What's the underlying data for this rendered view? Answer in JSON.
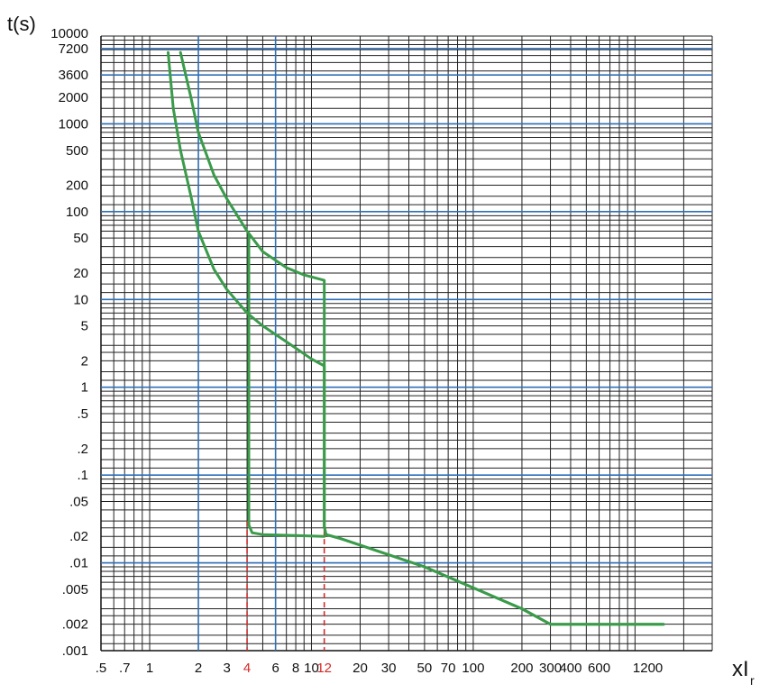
{
  "chart_data": {
    "type": "line",
    "title": "",
    "ylabel": "t(s)",
    "xlabel": "xI",
    "xlabel_sub": "r",
    "x_scale": "log",
    "y_scale": "log",
    "xlim": [
      0.5,
      3000
    ],
    "ylim": [
      0.001,
      10000
    ],
    "grid": true,
    "x_ticks": [
      {
        "value": 0.5,
        "label": ".5"
      },
      {
        "value": 0.7,
        "label": ".7"
      },
      {
        "value": 1,
        "label": "1"
      },
      {
        "value": 2,
        "label": "2"
      },
      {
        "value": 3,
        "label": "3"
      },
      {
        "value": 4,
        "label": "4",
        "highlight": true
      },
      {
        "value": 6,
        "label": "6"
      },
      {
        "value": 8,
        "label": "8"
      },
      {
        "value": 10,
        "label": "10"
      },
      {
        "value": 12,
        "label": "12",
        "highlight": true
      },
      {
        "value": 20,
        "label": "20"
      },
      {
        "value": 30,
        "label": "30"
      },
      {
        "value": 50,
        "label": "50"
      },
      {
        "value": 70,
        "label": "70"
      },
      {
        "value": 100,
        "label": "100"
      },
      {
        "value": 200,
        "label": "200"
      },
      {
        "value": 300,
        "label": "300"
      },
      {
        "value": 400,
        "label": "400"
      },
      {
        "value": 600,
        "label": "600"
      },
      {
        "value": 1200,
        "label": "1200"
      }
    ],
    "y_ticks": [
      {
        "value": 10000,
        "label": "10000"
      },
      {
        "value": 7200,
        "label": "7200"
      },
      {
        "value": 3600,
        "label": "3600"
      },
      {
        "value": 2000,
        "label": "2000"
      },
      {
        "value": 1000,
        "label": "1000"
      },
      {
        "value": 500,
        "label": "500"
      },
      {
        "value": 200,
        "label": "200"
      },
      {
        "value": 100,
        "label": "100"
      },
      {
        "value": 50,
        "label": "50"
      },
      {
        "value": 20,
        "label": "20"
      },
      {
        "value": 10,
        "label": "10"
      },
      {
        "value": 5,
        "label": "5"
      },
      {
        "value": 2,
        "label": "2"
      },
      {
        "value": 1,
        "label": "1"
      },
      {
        "value": 0.5,
        "label": ".5"
      },
      {
        "value": 0.2,
        "label": ".2"
      },
      {
        "value": 0.1,
        "label": ".1"
      },
      {
        "value": 0.05,
        "label": ".05"
      },
      {
        "value": 0.02,
        "label": ".02"
      },
      {
        "value": 0.01,
        "label": ".01"
      },
      {
        "value": 0.005,
        "label": ".005"
      },
      {
        "value": 0.002,
        "label": ".002"
      },
      {
        "value": 0.001,
        "label": ".001"
      }
    ],
    "blue_vertical_lines": [
      2,
      6
    ],
    "blue_horizontal_lines": [
      7200,
      3600,
      1000,
      100,
      10,
      1,
      0.1,
      0.01
    ],
    "red_dashed_markers": [
      {
        "x": 4,
        "y_top": 0.03,
        "y_bottom": 0.001
      },
      {
        "x": 12,
        "y_top": 0.03,
        "y_bottom": 0.001
      }
    ],
    "series": [
      {
        "points": [
          [
            1.3,
            6500
          ],
          [
            1.4,
            1500
          ],
          [
            1.55,
            500
          ],
          [
            1.8,
            150
          ],
          [
            2,
            60
          ],
          [
            2.5,
            22
          ],
          [
            3,
            13
          ],
          [
            4,
            7
          ],
          [
            5,
            5
          ],
          [
            7,
            3.3
          ],
          [
            10,
            2.1
          ],
          [
            12,
            1.75
          ],
          [
            12,
            0.026
          ],
          [
            12.3,
            0.021
          ],
          [
            15,
            0.019
          ],
          [
            50,
            0.009
          ],
          [
            200,
            0.003
          ],
          [
            300,
            0.002
          ],
          [
            1500,
            0.002
          ]
        ],
        "color": "#3a9b4a"
      },
      {
        "points": [
          [
            1.55,
            6500
          ],
          [
            1.8,
            2000
          ],
          [
            2,
            800
          ],
          [
            2.5,
            260
          ],
          [
            3,
            140
          ],
          [
            4,
            60
          ],
          [
            5,
            35
          ],
          [
            7,
            23
          ],
          [
            9,
            19
          ],
          [
            12,
            16.5
          ],
          [
            12,
            0.026
          ],
          [
            12.3,
            0.021
          ],
          [
            15,
            0.019
          ],
          [
            50,
            0.009
          ],
          [
            200,
            0.003
          ],
          [
            300,
            0.002
          ],
          [
            1500,
            0.002
          ]
        ],
        "color": "#3a9b4a"
      },
      {
        "points": [
          [
            4.1,
            55
          ],
          [
            4.1,
            0.027
          ],
          [
            4.3,
            0.022
          ],
          [
            5,
            0.021
          ],
          [
            8,
            0.0205
          ],
          [
            12,
            0.02
          ]
        ],
        "color": "#3a9b4a"
      }
    ]
  }
}
